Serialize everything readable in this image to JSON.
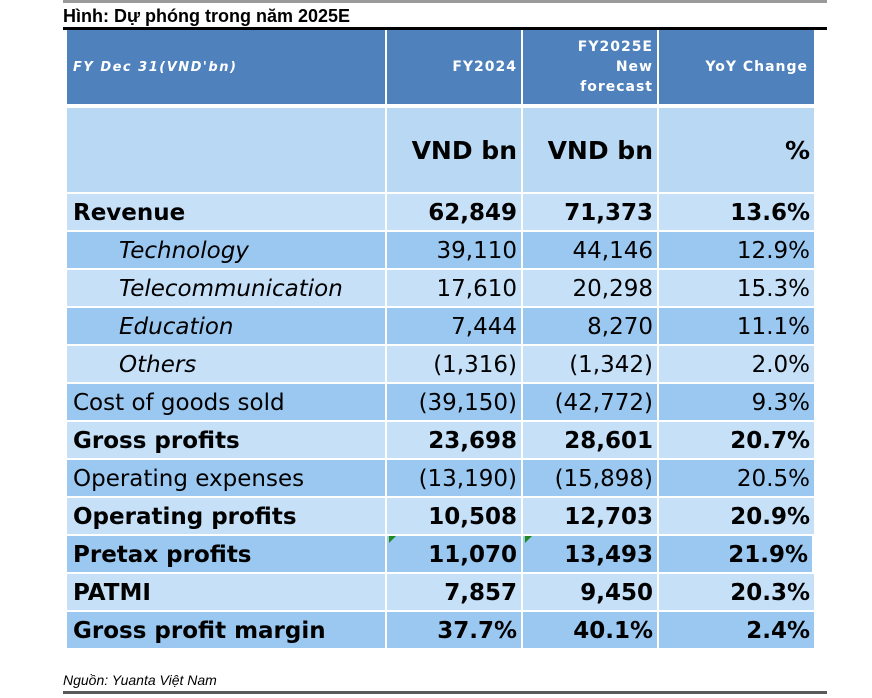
{
  "title": "Hình: Dự phóng trong năm 2025E",
  "source": "Nguồn: Yuanta Việt Nam",
  "header": {
    "col1": "FY Dec 31(VND'bn)",
    "col2": "FY2024",
    "col3_line1": "FY2025E",
    "col3_line2": "New",
    "col3_line3": "forecast",
    "col4": "YoY Change"
  },
  "units": {
    "col1": "",
    "col2": "VND bn",
    "col3": "VND bn",
    "col4": "%"
  },
  "rows": [
    {
      "label": "Revenue",
      "fy2024": "62,849",
      "fy2025": "71,373",
      "yoy": "13.6%"
    },
    {
      "label": "Technology",
      "fy2024": "39,110",
      "fy2025": "44,146",
      "yoy": "12.9%"
    },
    {
      "label": "Telecommunication",
      "fy2024": "17,610",
      "fy2025": "20,298",
      "yoy": "15.3%"
    },
    {
      "label": "Education",
      "fy2024": "7,444",
      "fy2025": "8,270",
      "yoy": "11.1%"
    },
    {
      "label": "Others",
      "fy2024": "(1,316)",
      "fy2025": "(1,342)",
      "yoy": "2.0%"
    },
    {
      "label": "Cost of goods sold",
      "fy2024": "(39,150)",
      "fy2025": "(42,772)",
      "yoy": "9.3%"
    },
    {
      "label": "Gross profits",
      "fy2024": "23,698",
      "fy2025": "28,601",
      "yoy": "20.7%"
    },
    {
      "label": "Operating expenses",
      "fy2024": "(13,190)",
      "fy2025": "(15,898)",
      "yoy": "20.5%"
    },
    {
      "label": "Operating profits",
      "fy2024": "10,508",
      "fy2025": "12,703",
      "yoy": "20.9%"
    },
    {
      "label": "Pretax profits",
      "fy2024": "11,070",
      "fy2025": "13,493",
      "yoy": "21.9%"
    },
    {
      "label": "PATMI",
      "fy2024": "7,857",
      "fy2025": "9,450",
      "yoy": "20.3%"
    },
    {
      "label": "Gross profit margin",
      "fy2024": "37.7%",
      "fy2025": "40.1%",
      "yoy": "2.4%"
    }
  ]
}
